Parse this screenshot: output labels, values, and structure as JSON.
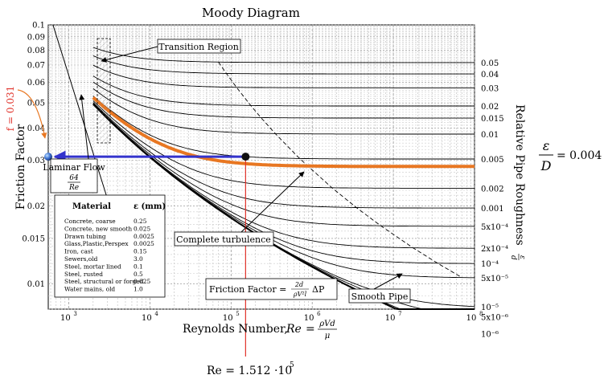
{
  "chart_data": {
    "type": "line",
    "title": "Moody Diagram",
    "xlabel_main": "Reynolds Number,",
    "xlabel_var": "Re",
    "xlabel_frac_num": "ρVd",
    "xlabel_frac_den": "μ",
    "ylabel": "Friction Factor",
    "right_label": "Relative Pipe Roughness",
    "right_label_symbol_num": "ε",
    "right_label_symbol_den": "d",
    "x_scale": "log",
    "y_scale": "log",
    "xlim": [
      560,
      100000000
    ],
    "ylim": [
      0.008,
      0.1
    ],
    "grid": true,
    "x_ticks": [
      {
        "value": 1000,
        "base": "10",
        "exp": "3"
      },
      {
        "value": 10000,
        "base": "10",
        "exp": "4"
      },
      {
        "value": 100000,
        "base": "10",
        "exp": "5"
      },
      {
        "value": 1000000,
        "base": "10",
        "exp": "6"
      },
      {
        "value": 10000000,
        "base": "10",
        "exp": "7"
      },
      {
        "value": 100000000,
        "base": "10",
        "exp": "8"
      }
    ],
    "y_ticks": [
      {
        "value": 0.1,
        "label": "0.1"
      },
      {
        "value": 0.09,
        "label": "0.09"
      },
      {
        "value": 0.08,
        "label": "0.08"
      },
      {
        "value": 0.07,
        "label": "0.07"
      },
      {
        "value": 0.06,
        "label": "0.06"
      },
      {
        "value": 0.05,
        "label": "0.05"
      },
      {
        "value": 0.04,
        "label": "0.04"
      },
      {
        "value": 0.03,
        "label": "0.03"
      },
      {
        "value": 0.02,
        "label": "0.02"
      },
      {
        "value": 0.015,
        "label": "0.015"
      },
      {
        "value": 0.01,
        "label": "0.01"
      }
    ],
    "roughness_curves": [
      {
        "eps": 0.05,
        "label": "0.05"
      },
      {
        "eps": 0.04,
        "label": "0.04"
      },
      {
        "eps": 0.03,
        "label": "0.03"
      },
      {
        "eps": 0.02,
        "label": "0.02"
      },
      {
        "eps": 0.015,
        "label": "0.015"
      },
      {
        "eps": 0.01,
        "label": "0.01"
      },
      {
        "eps": 0.005,
        "label": "0.005"
      },
      {
        "eps": 0.002,
        "label": "0.002"
      },
      {
        "eps": 0.001,
        "label": "0.001"
      },
      {
        "eps": 0.0005,
        "label": "5x10⁻⁴"
      },
      {
        "eps": 0.0002,
        "label": "2x10⁻⁴"
      },
      {
        "eps": 0.0001,
        "label": "10⁻⁴"
      },
      {
        "eps": 5e-05,
        "label": "5x10⁻⁵"
      },
      {
        "eps": 1e-05,
        "label": "10⁻⁵"
      },
      {
        "eps": 5e-06,
        "label": "5x10⁻⁶"
      },
      {
        "eps": 1e-06,
        "label": "10⁻⁶"
      }
    ],
    "highlight_curve": {
      "eps": 0.004,
      "color": "#E87722"
    },
    "operating_point": {
      "Re": 151200,
      "f": 0.031
    },
    "annotations": {
      "transition_region": "Transition Region",
      "laminar_flow": "Laminar Flow",
      "laminar_num": "64",
      "laminar_den": "Re",
      "complete_turbulence": "Complete turbulence",
      "smooth_pipe": "Smooth Pipe",
      "friction_eq_prefix": "Friction Factor =",
      "friction_eq_num": "2d",
      "friction_eq_den": "ρV²l",
      "friction_eq_suffix": "ΔP",
      "f_value": "f = 0.031",
      "re_value_prefix": "Re = 1.512 ·10",
      "re_value_exp": "5",
      "eps_ratio_num": "ε",
      "eps_ratio_den": "D",
      "eps_ratio_value": "= 0.004"
    },
    "material_table": {
      "header_material": "Material",
      "header_eps": "ε (mm)",
      "rows": [
        {
          "material": "Concrete, coarse",
          "eps": "0.25"
        },
        {
          "material": "Concrete, new smooth",
          "eps": "0.025"
        },
        {
          "material": "Drawn tubing",
          "eps": "0.0025"
        },
        {
          "material": "Glass,Plastic,Perspex",
          "eps": "0.0025"
        },
        {
          "material": "Iron, cast",
          "eps": "0.15"
        },
        {
          "material": "Sewers,old",
          "eps": "3.0"
        },
        {
          "material": "Steel, mortar lined",
          "eps": "0.1"
        },
        {
          "material": "Steel, rusted",
          "eps": "0.5"
        },
        {
          "material": "Steel, structural or forged",
          "eps": "0.025"
        },
        {
          "material": "Water mains, old",
          "eps": "1.0"
        }
      ]
    },
    "colors": {
      "highlight": "#E87722",
      "horizontal_marker": "#3333CC",
      "vertical_marker": "#E0322A",
      "f_label": "#E0322A",
      "point": "#111111",
      "start_dot": "#3A6FD0"
    }
  }
}
